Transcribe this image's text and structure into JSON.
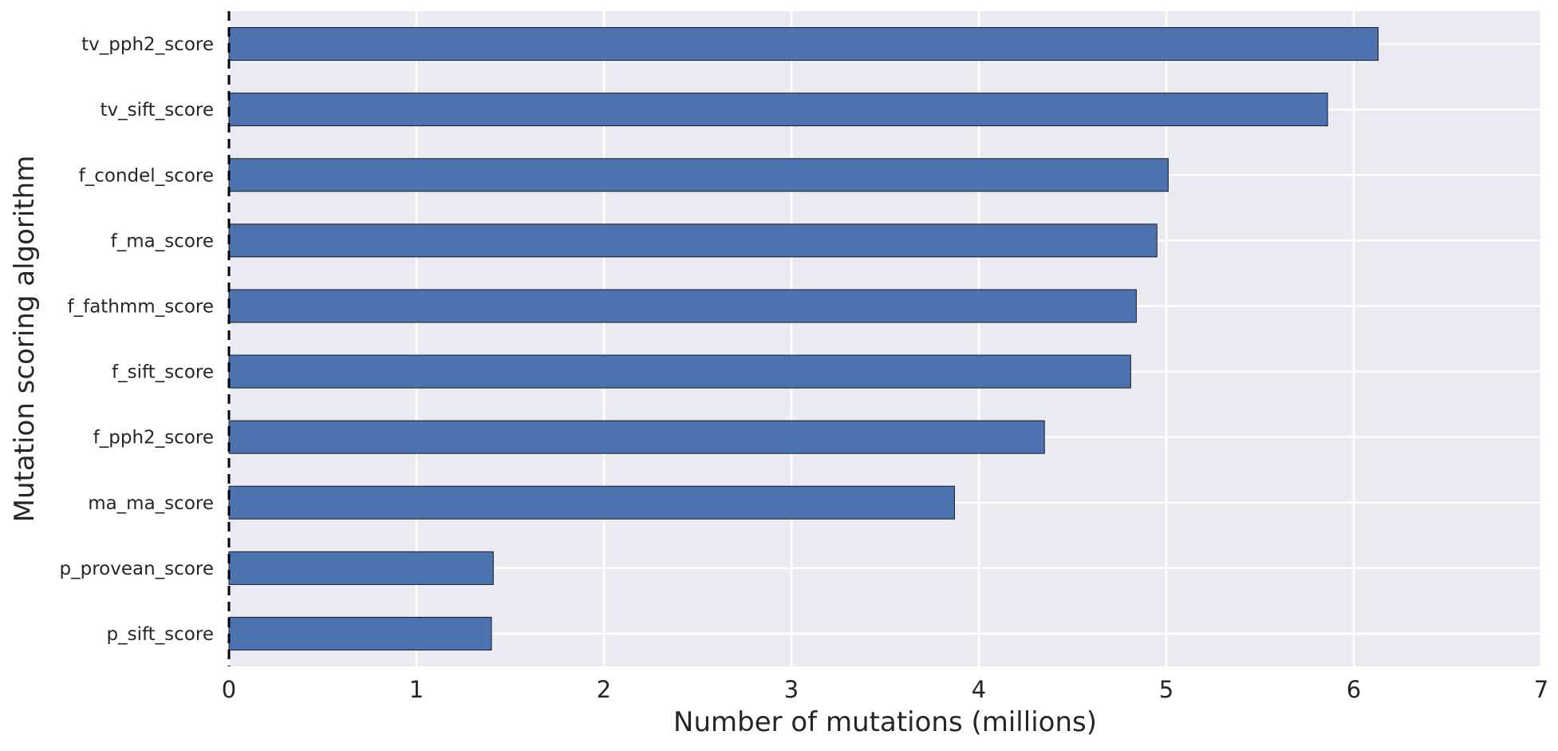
{
  "chart_data": {
    "type": "bar",
    "orientation": "horizontal",
    "categories": [
      "tv_pph2_score",
      "tv_sift_score",
      "f_condel_score",
      "f_ma_score",
      "f_fathmm_score",
      "f_sift_score",
      "f_pph2_score",
      "ma_ma_score",
      "p_provean_score",
      "p_sift_score"
    ],
    "values": [
      6.13,
      5.86,
      5.01,
      4.95,
      4.84,
      4.81,
      4.35,
      3.87,
      1.41,
      1.4
    ],
    "xlabel": "Number of mutations (millions)",
    "ylabel": "Mutation scoring algorithm",
    "xlim": [
      0,
      7
    ],
    "xticks": [
      "0",
      "1",
      "2",
      "3",
      "4",
      "5",
      "6",
      "7"
    ],
    "grid": true,
    "reference_line": {
      "x": 0,
      "style": "dashed"
    },
    "bar_color": "#4c72b0",
    "background_color": "#eaeaf2",
    "grid_color": "#ffffff"
  }
}
